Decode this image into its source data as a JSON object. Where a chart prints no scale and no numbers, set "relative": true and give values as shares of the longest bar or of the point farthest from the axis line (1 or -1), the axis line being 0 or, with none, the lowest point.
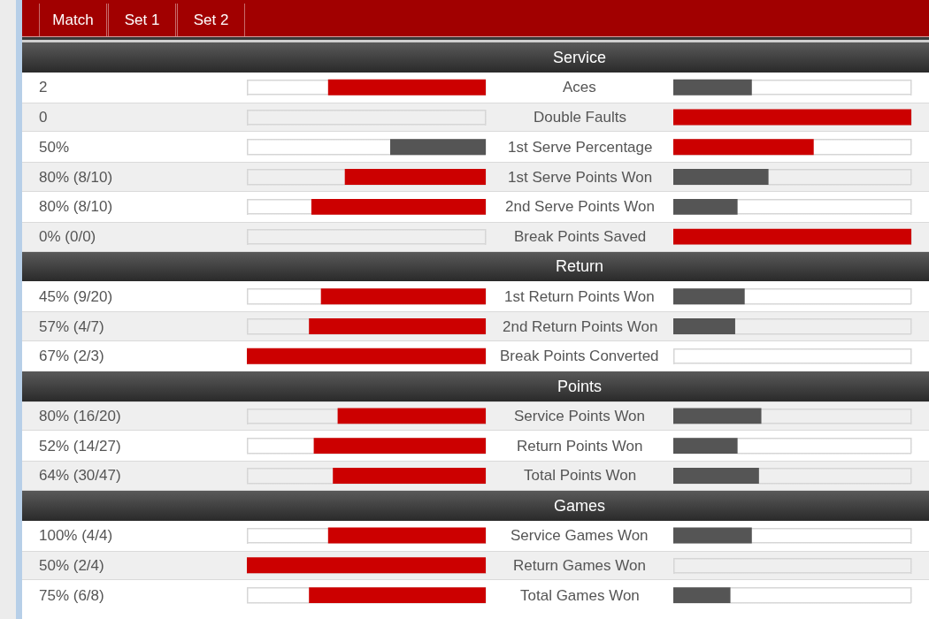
{
  "chart_data": [
    {
      "type": "other",
      "annotations": [
        "Match",
        "Set 1",
        "Set 2"
      ]
    },
    {
      "type": "bar",
      "orientation": "horizontal",
      "relative": true,
      "categories": [
        "Service",
        "Aces",
        "Double Faults",
        "1st Serve Percentage",
        "1st Serve Points Won",
        "2nd Serve Points Won",
        "Break Points Saved",
        "Return",
        "1st Return Points Won",
        "2nd Return Points Won",
        "Break Points Converted",
        "Points",
        "Service Points Won",
        "Return Points Won",
        "Total Points Won",
        "Games",
        "Service Games Won",
        "Return Games Won",
        "Total Games Won"
      ],
      "series": [
        {
          "values": [
            null,
            0.66,
            0,
            0.4,
            0.59,
            0.73,
            0,
            null,
            0.69,
            0.74,
            1,
            null,
            0.62,
            0.72,
            0.64,
            null,
            0.66,
            1,
            0.74
          ],
          "colors": [
            null,
            "#cc0000",
            "#555555",
            "#555555",
            "#cc0000",
            "#cc0000",
            "#555555",
            null,
            "#cc0000",
            "#cc0000",
            "#cc0000",
            null,
            "#cc0000",
            "#cc0000",
            "#cc0000",
            null,
            "#cc0000",
            "#cc0000",
            "#cc0000"
          ]
        }
      ],
      "bands": [
        {
          "axis": "y",
          "from": "Service",
          "to": "Service",
          "color": "#3a3a3a"
        },
        {
          "axis": "y",
          "from": "Return",
          "to": "Return",
          "color": "#3a3a3a"
        },
        {
          "axis": "y",
          "from": "Points",
          "to": "Points",
          "color": "#3a3a3a"
        },
        {
          "axis": "y",
          "from": "Games",
          "to": "Games",
          "color": "#3a3a3a"
        }
      ],
      "annotations": [
        "2",
        "0",
        "50%",
        "80% (8/10)",
        "80% (8/10)",
        "0% (0/0)",
        "45% (9/20)",
        "57% (4/7)",
        "67% (2/3)",
        "80% (16/20)",
        "52% (14/27)",
        "64% (30/47)",
        "100% (4/4)",
        "50% (2/4)",
        "75% (6/8)"
      ]
    },
    {
      "type": "bar",
      "orientation": "horizontal",
      "relative": true,
      "tick_labels": false,
      "categories": [
        "Service",
        "Aces",
        "Double Faults",
        "1st Serve Percentage",
        "1st Serve Points Won",
        "2nd Serve Points Won",
        "Break Points Saved",
        "Return",
        "1st Return Points Won",
        "2nd Return Points Won",
        "Break Points Converted",
        "Points",
        "Service Points Won",
        "Return Points Won",
        "Total Points Won",
        "Games",
        "Service Games Won",
        "Return Games Won",
        "Total Games Won"
      ],
      "series": [
        {
          "values": [
            null,
            0.33,
            1,
            0.59,
            0.4,
            0.27,
            1,
            null,
            0.3,
            0.26,
            0,
            null,
            0.37,
            0.27,
            0.36,
            null,
            0.33,
            0,
            0.24
          ],
          "colors": [
            null,
            "#555555",
            "#cc0000",
            "#cc0000",
            "#555555",
            "#555555",
            "#cc0000",
            null,
            "#555555",
            "#555555",
            "#555555",
            null,
            "#555555",
            "#555555",
            "#555555",
            null,
            "#555555",
            "#555555",
            "#555555"
          ]
        }
      ],
      "bands": [
        {
          "axis": "y",
          "from": "Service",
          "to": "Service",
          "color": "#3a3a3a"
        },
        {
          "axis": "y",
          "from": "Return",
          "to": "Return",
          "color": "#3a3a3a"
        },
        {
          "axis": "y",
          "from": "Points",
          "to": "Points",
          "color": "#3a3a3a"
        },
        {
          "axis": "y",
          "from": "Games",
          "to": "Games",
          "color": "#3a3a3a"
        }
      ]
    }
  ]
}
